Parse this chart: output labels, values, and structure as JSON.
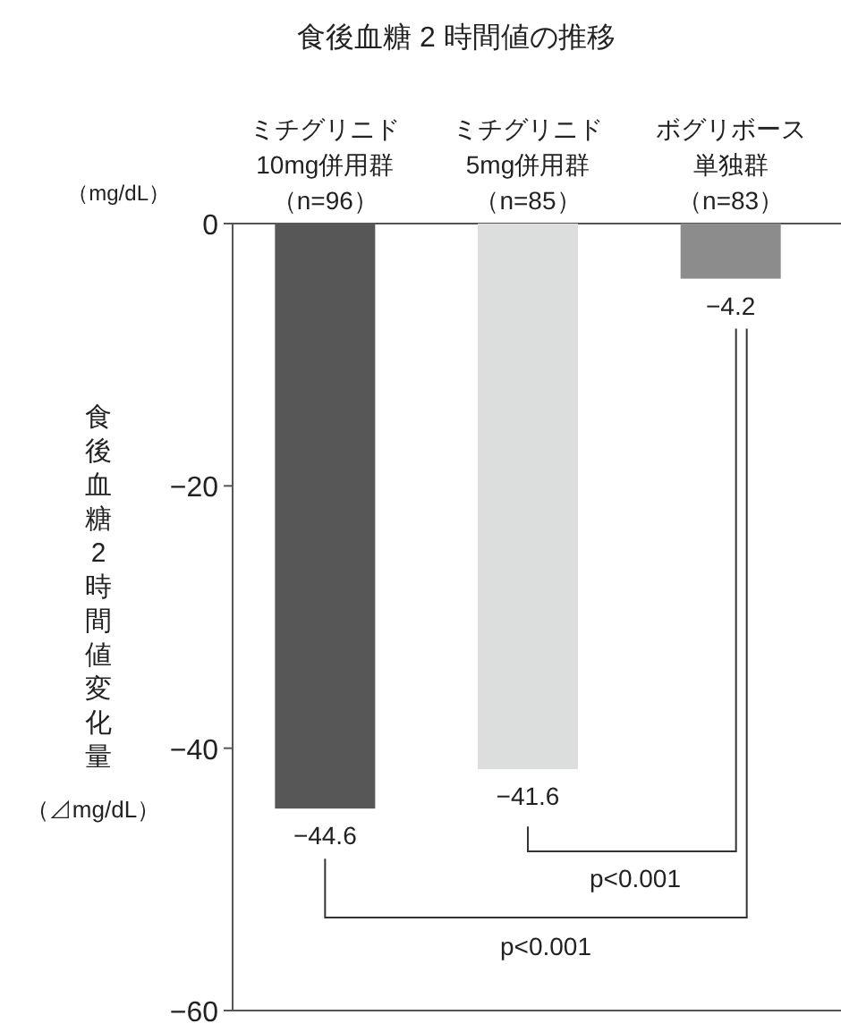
{
  "chart_data": {
    "type": "bar",
    "title": "食後血糖 2 時間値の推移",
    "ylabel": "食後血糖2時間値変化量",
    "categories": [
      "ミチグリニド10mg併用群（n=96）",
      "ミチグリニド5mg併用群（n=85）",
      "ボグリボース単独群（n=83）"
    ],
    "values": [
      -44.6,
      -41.6,
      -4.2
    ],
    "colors": [
      "#575757",
      "#dcdddd",
      "#8c8c8c"
    ],
    "ylim": [
      -60,
      0
    ],
    "yticks": [
      0,
      -20,
      -40,
      -60
    ],
    "grid": false,
    "data_labels": true,
    "annotations": [
      "（mg/dL）",
      "（⊿mg/dL）",
      "p<0.001",
      "p<0.001"
    ]
  }
}
